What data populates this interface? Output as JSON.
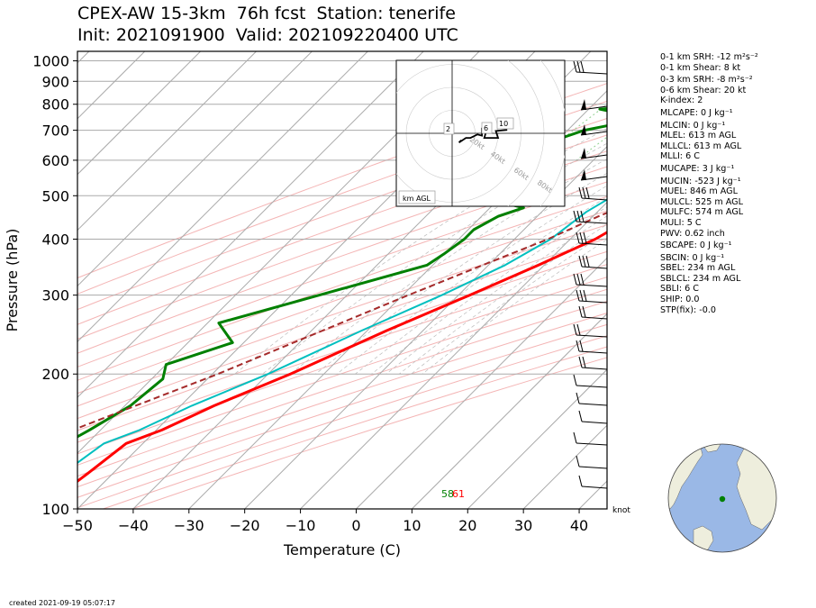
{
  "title": {
    "line1": "CPEX-AW 15-3km  76h fcst  Station: tenerife",
    "line2": "Init: 2021091900  Valid: 202109220400 UTC"
  },
  "footer": {
    "created": "created 2021-09-19 05:07:17"
  },
  "colors": {
    "temperature": "#ff0000",
    "dewpoint": "#008000",
    "virtual_temp": "#00bfbf",
    "parcel": "#a52a2a",
    "isotherm": "#aaaaaa",
    "dry_adiabat": "#f4b5b5",
    "mixing_ratio": "#8fd18f",
    "isobar": "#aaaaaa",
    "globe_ocean": "#9ab8e6",
    "globe_land": "#eeeedd",
    "station_dot": "#008000"
  },
  "indices": [
    {
      "label": "0-1 km SRH",
      "value": "-12 m²s⁻²"
    },
    {
      "label": "0-1 km Shear",
      "value": "8 kt"
    },
    {
      "label": "0-3 km SRH",
      "value": "-8 m²s⁻²"
    },
    {
      "label": "0-6 km Shear",
      "value": "20 kt"
    },
    {
      "label": "K-index",
      "value": "2"
    },
    {
      "label": "MLCAPE",
      "value": "0 J kg⁻¹"
    },
    {
      "label": "MLCIN",
      "value": "0 J kg⁻¹"
    },
    {
      "label": "MLEL",
      "value": "613 m AGL"
    },
    {
      "label": "MLLCL",
      "value": "613 m AGL"
    },
    {
      "label": "MLLI",
      "value": "6 C"
    },
    {
      "label": "MUCAPE",
      "value": "3 J kg⁻¹"
    },
    {
      "label": "MUCIN",
      "value": "-523 J kg⁻¹"
    },
    {
      "label": "MUEL",
      "value": "846 m AGL"
    },
    {
      "label": "MULCL",
      "value": "525 m AGL"
    },
    {
      "label": "MULFC",
      "value": "574 m AGL"
    },
    {
      "label": "MULI",
      "value": "5 C"
    },
    {
      "label": "PWV",
      "value": "0.62 inch"
    },
    {
      "label": "SBCAPE",
      "value": "0 J kg⁻¹"
    },
    {
      "label": "SBCIN",
      "value": "0 J kg⁻¹"
    },
    {
      "label": "SBEL",
      "value": "234 m AGL"
    },
    {
      "label": "SBLCL",
      "value": "234 m AGL"
    },
    {
      "label": "SBLI",
      "value": "6 C"
    },
    {
      "label": "SHIP",
      "value": "0.0"
    },
    {
      "label": "STP(fix)",
      "value": "-0.0"
    }
  ],
  "chart_data": [
    {
      "type": "line",
      "subtype": "skew-T log-p diagram",
      "xlabel": "Temperature (C)",
      "ylabel": "Pressure (hPa)",
      "xlim": [
        -50,
        45
      ],
      "ylim": [
        1050,
        100
      ],
      "y_scale": "log",
      "x_ticks": [
        -50,
        -40,
        -30,
        -20,
        -10,
        0,
        10,
        20,
        30,
        40
      ],
      "y_ticks": [
        1000,
        900,
        800,
        700,
        600,
        500,
        400,
        300,
        200,
        100
      ],
      "grid": true,
      "surface_labels": {
        "dewpoint": "58",
        "temperature": "61"
      },
      "series": [
        {
          "key": "temperature",
          "points": [
            [
              940,
              18.0
            ],
            [
              920,
              16.5
            ],
            [
              880,
              16
            ],
            [
              850,
              17
            ],
            [
              820,
              17.5
            ],
            [
              800,
              19
            ],
            [
              780,
              20.5
            ],
            [
              750,
              19
            ],
            [
              700,
              16
            ],
            [
              650,
              13.5
            ],
            [
              600,
              11
            ],
            [
              560,
              8.5
            ],
            [
              500,
              3
            ],
            [
              450,
              -2.5
            ],
            [
              400,
              -5.5
            ],
            [
              350,
              -11
            ],
            [
              300,
              -18
            ],
            [
              250,
              -26.5
            ],
            [
              200,
              -36
            ],
            [
              170,
              -44
            ],
            [
              150,
              -49
            ],
            [
              140,
              -53
            ],
            [
              120,
              -54.5
            ],
            [
              115,
              -55
            ],
            [
              105,
              -55
            ],
            [
              100,
              -56
            ]
          ]
        },
        {
          "key": "virtual_temp",
          "points": [
            [
              940,
              18.5
            ],
            [
              920,
              16.8
            ],
            [
              880,
              13
            ],
            [
              850,
              9.5
            ],
            [
              800,
              5
            ],
            [
              760,
              4
            ],
            [
              700,
              0
            ],
            [
              650,
              -3.5
            ],
            [
              600,
              -6
            ],
            [
              550,
              -8
            ],
            [
              500,
              -10
            ],
            [
              460,
              -12
            ],
            [
              400,
              -13.5
            ],
            [
              350,
              -17
            ],
            [
              300,
              -23
            ],
            [
              250,
              -31
            ],
            [
              200,
              -40
            ],
            [
              170,
              -48
            ],
            [
              150,
              -53
            ],
            [
              140,
              -57
            ],
            [
              120,
              -59
            ],
            [
              115,
              -59
            ],
            [
              105,
              -57
            ],
            [
              100,
              -57
            ]
          ]
        },
        {
          "key": "dewpoint",
          "points": [
            [
              940,
              16.5
            ],
            [
              920,
              16
            ],
            [
              900,
              15.5
            ],
            [
              880,
              14
            ],
            [
              850,
              8
            ],
            [
              830,
              -15
            ],
            [
              800,
              -18
            ],
            [
              780,
              -28
            ],
            [
              750,
              -20
            ],
            [
              720,
              -23
            ],
            [
              700,
              -27
            ],
            [
              650,
              -32
            ],
            [
              620,
              -35
            ],
            [
              590,
              -39
            ],
            [
              550,
              -43
            ],
            [
              500,
              -35
            ],
            [
              470,
              -24
            ],
            [
              450,
              -27
            ],
            [
              420,
              -29
            ],
            [
              400,
              -29
            ],
            [
              370,
              -30
            ],
            [
              350,
              -31
            ],
            [
              300,
              -45
            ],
            [
              260,
              -58
            ],
            [
              235,
              -52
            ],
            [
              210,
              -60
            ],
            [
              195,
              -58
            ],
            [
              170,
              -59
            ],
            [
              150,
              -62
            ],
            [
              130,
              -66
            ],
            [
              120,
              -68
            ],
            [
              110,
              -64
            ],
            [
              100,
              -63
            ]
          ]
        },
        {
          "key": "parcel",
          "style": "dashed",
          "points": [
            [
              940,
              18
            ],
            [
              900,
              16.5
            ],
            [
              850,
              16
            ],
            [
              800,
              15
            ],
            [
              750,
              13
            ],
            [
              700,
              10.5
            ],
            [
              650,
              7.5
            ],
            [
              600,
              4
            ],
            [
              550,
              0.5
            ],
            [
              500,
              -4
            ],
            [
              450,
              -9
            ],
            [
              400,
              -14
            ],
            [
              350,
              -21
            ],
            [
              300,
              -29
            ],
            [
              250,
              -38
            ],
            [
              200,
              -49
            ],
            [
              150,
              -65
            ],
            [
              100,
              -88
            ]
          ]
        }
      ]
    },
    {
      "type": "line",
      "subtype": "hodograph inset",
      "annotation": "km AGL",
      "ring_labels": [
        "20kt",
        "40kt",
        "60kt",
        "80kt"
      ],
      "height_labels": [
        "2",
        "6",
        "10"
      ],
      "points": [
        [
          4,
          -3
        ],
        [
          3,
          -4
        ],
        [
          6,
          -2
        ],
        [
          8,
          -2
        ],
        [
          11,
          -0.5
        ],
        [
          13,
          -1
        ],
        [
          13,
          2
        ],
        [
          15,
          1.5
        ],
        [
          14,
          -2
        ],
        [
          20,
          -2
        ],
        [
          19,
          1
        ],
        [
          24,
          1.5
        ]
      ]
    }
  ]
}
